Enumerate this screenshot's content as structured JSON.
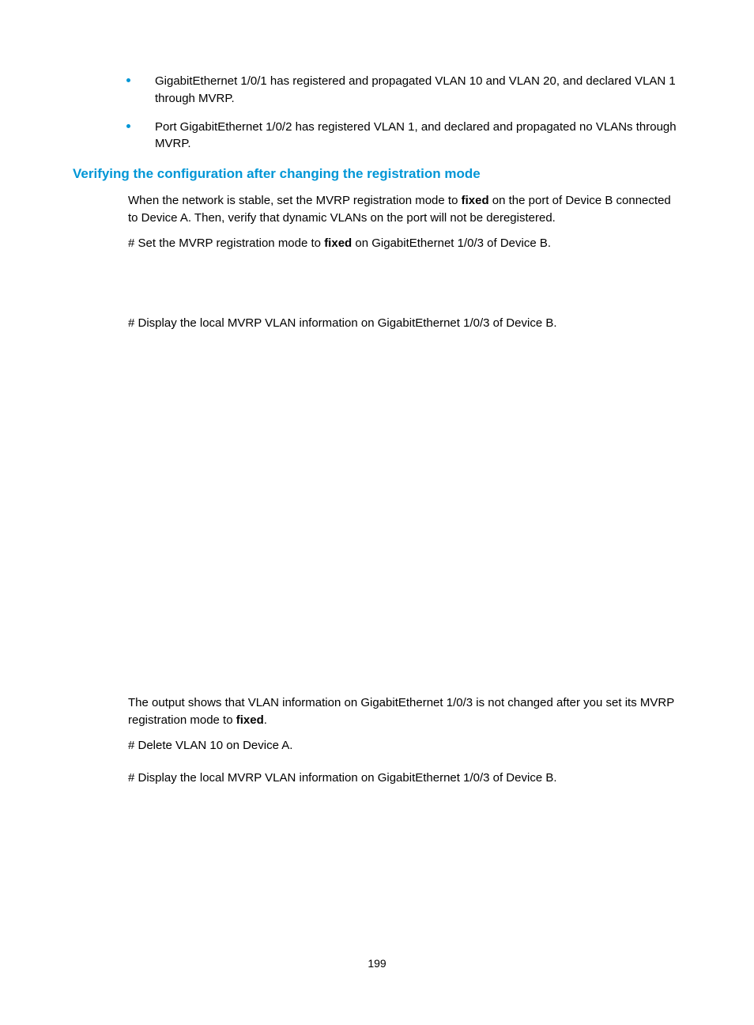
{
  "bullets": [
    {
      "text": "GigabitEthernet 1/0/1 has registered and propagated VLAN 10 and VLAN 20, and declared VLAN 1 through MVRP."
    },
    {
      "text": "Port GigabitEthernet 1/0/2 has registered VLAN 1, and declared and propagated no VLANs through MVRP."
    }
  ],
  "section_title": "Verifying the configuration after changing the registration mode",
  "para1_pre": "When the network is stable, set the MVRP registration mode to ",
  "para1_bold": "fixed",
  "para1_post": " on the port of Device B connected to Device A. Then, verify that dynamic VLANs on the port will not be deregistered.",
  "para2_pre": "# Set the MVRP registration mode to ",
  "para2_bold": "fixed",
  "para2_post": " on GigabitEthernet 1/0/3 of Device B.",
  "para3": "# Display the local MVRP VLAN information on GigabitEthernet 1/0/3 of Device B.",
  "para4_pre": "The output shows that VLAN information on GigabitEthernet 1/0/3 is not changed after you set its MVRP registration mode to ",
  "para4_bold": "fixed",
  "para4_post": ".",
  "para5": "# Delete VLAN 10 on Device A.",
  "para6": "# Display the local MVRP VLAN information on GigabitEthernet 1/0/3 of Device B.",
  "page_number": "199",
  "colors": {
    "accent": "#0096d6",
    "text": "#000000",
    "background": "#ffffff"
  },
  "typography": {
    "body_fontsize": 15,
    "title_fontsize": 17,
    "pagenum_fontsize": 14,
    "font_family": "Arial"
  }
}
